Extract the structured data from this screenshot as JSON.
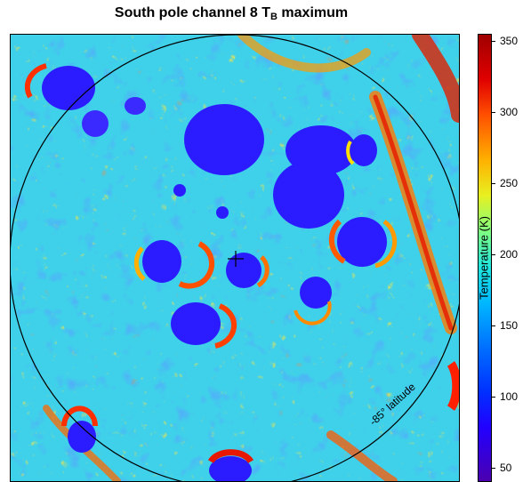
{
  "title": {
    "main": "South pole channel 8 T",
    "subscript": "B",
    "suffix": " maximum"
  },
  "annotations": {
    "latitude_label": "-85° latitude"
  },
  "colorbar": {
    "label": "Temperature (K)",
    "ticks": [
      "350",
      "300",
      "250",
      "200",
      "150",
      "100",
      "50"
    ],
    "range": [
      40,
      355
    ]
  },
  "colors": {
    "cold": "#2a1cff",
    "warm": "#ff3a00",
    "mid": "#33d7f0"
  }
}
